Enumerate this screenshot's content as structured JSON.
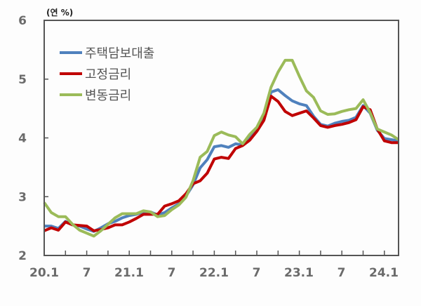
{
  "chart_data": {
    "type": "line",
    "title": "",
    "unit_label": "(연 %)",
    "xlabel": "",
    "ylabel": "연 %",
    "ylim": [
      2,
      6
    ],
    "yticks": [
      2,
      3,
      4,
      5,
      6
    ],
    "xtick_labels": [
      "20.1",
      "7",
      "21.1",
      "7",
      "22.1",
      "7",
      "23.1",
      "7",
      "24.1"
    ],
    "grid": false,
    "legend_position": "upper-left",
    "x": [
      "20.1",
      "20.2",
      "20.3",
      "20.4",
      "20.5",
      "20.6",
      "20.7",
      "20.8",
      "20.9",
      "20.10",
      "20.11",
      "20.12",
      "21.1",
      "21.2",
      "21.3",
      "21.4",
      "21.5",
      "21.6",
      "21.7",
      "21.8",
      "21.9",
      "21.10",
      "21.11",
      "21.12",
      "22.1",
      "22.2",
      "22.3",
      "22.4",
      "22.5",
      "22.6",
      "22.7",
      "22.8",
      "22.9",
      "22.10",
      "22.11",
      "22.12",
      "23.1",
      "23.2",
      "23.3",
      "23.4",
      "23.5",
      "23.6",
      "23.7",
      "23.8",
      "23.9",
      "23.10",
      "23.11",
      "23.12",
      "24.1",
      "24.2",
      "24.3"
    ],
    "series": [
      {
        "name": "주택담보대출",
        "color": "#4f81bd",
        "values": [
          2.5,
          2.5,
          2.46,
          2.58,
          2.52,
          2.5,
          2.45,
          2.41,
          2.47,
          2.54,
          2.58,
          2.64,
          2.68,
          2.7,
          2.74,
          2.74,
          2.69,
          2.73,
          2.81,
          2.88,
          3.01,
          3.2,
          3.49,
          3.63,
          3.85,
          3.87,
          3.84,
          3.9,
          3.88,
          4.0,
          4.14,
          4.34,
          4.78,
          4.82,
          4.72,
          4.63,
          4.58,
          4.55,
          4.37,
          4.23,
          4.2,
          4.25,
          4.28,
          4.3,
          4.35,
          4.55,
          4.42,
          4.13,
          3.99,
          3.97,
          3.95
        ]
      },
      {
        "name": "고정금리",
        "color": "#c00000",
        "values": [
          2.42,
          2.47,
          2.43,
          2.57,
          2.52,
          2.51,
          2.5,
          2.42,
          2.44,
          2.47,
          2.52,
          2.52,
          2.57,
          2.63,
          2.7,
          2.7,
          2.7,
          2.84,
          2.88,
          2.93,
          3.05,
          3.22,
          3.27,
          3.4,
          3.64,
          3.67,
          3.65,
          3.82,
          3.87,
          3.96,
          4.11,
          4.3,
          4.71,
          4.62,
          4.45,
          4.38,
          4.42,
          4.46,
          4.34,
          4.21,
          4.18,
          4.21,
          4.23,
          4.26,
          4.31,
          4.53,
          4.48,
          4.15,
          3.95,
          3.92,
          3.92
        ]
      },
      {
        "name": "변동금리",
        "color": "#9bbb59",
        "values": [
          2.9,
          2.73,
          2.66,
          2.66,
          2.53,
          2.43,
          2.38,
          2.33,
          2.42,
          2.53,
          2.64,
          2.71,
          2.71,
          2.71,
          2.76,
          2.74,
          2.66,
          2.68,
          2.78,
          2.86,
          2.99,
          3.27,
          3.67,
          3.77,
          4.04,
          4.1,
          4.05,
          4.02,
          3.9,
          4.06,
          4.18,
          4.42,
          4.86,
          5.12,
          5.32,
          5.32,
          5.05,
          4.8,
          4.69,
          4.46,
          4.4,
          4.41,
          4.45,
          4.48,
          4.5,
          4.65,
          4.43,
          4.15,
          4.1,
          4.05,
          3.97
        ]
      }
    ]
  },
  "legend": {
    "items": [
      {
        "label": "주택담보대출",
        "color": "#4f81bd"
      },
      {
        "label": "고정금리",
        "color": "#c00000"
      },
      {
        "label": "변동금리",
        "color": "#9bbb59"
      }
    ]
  }
}
